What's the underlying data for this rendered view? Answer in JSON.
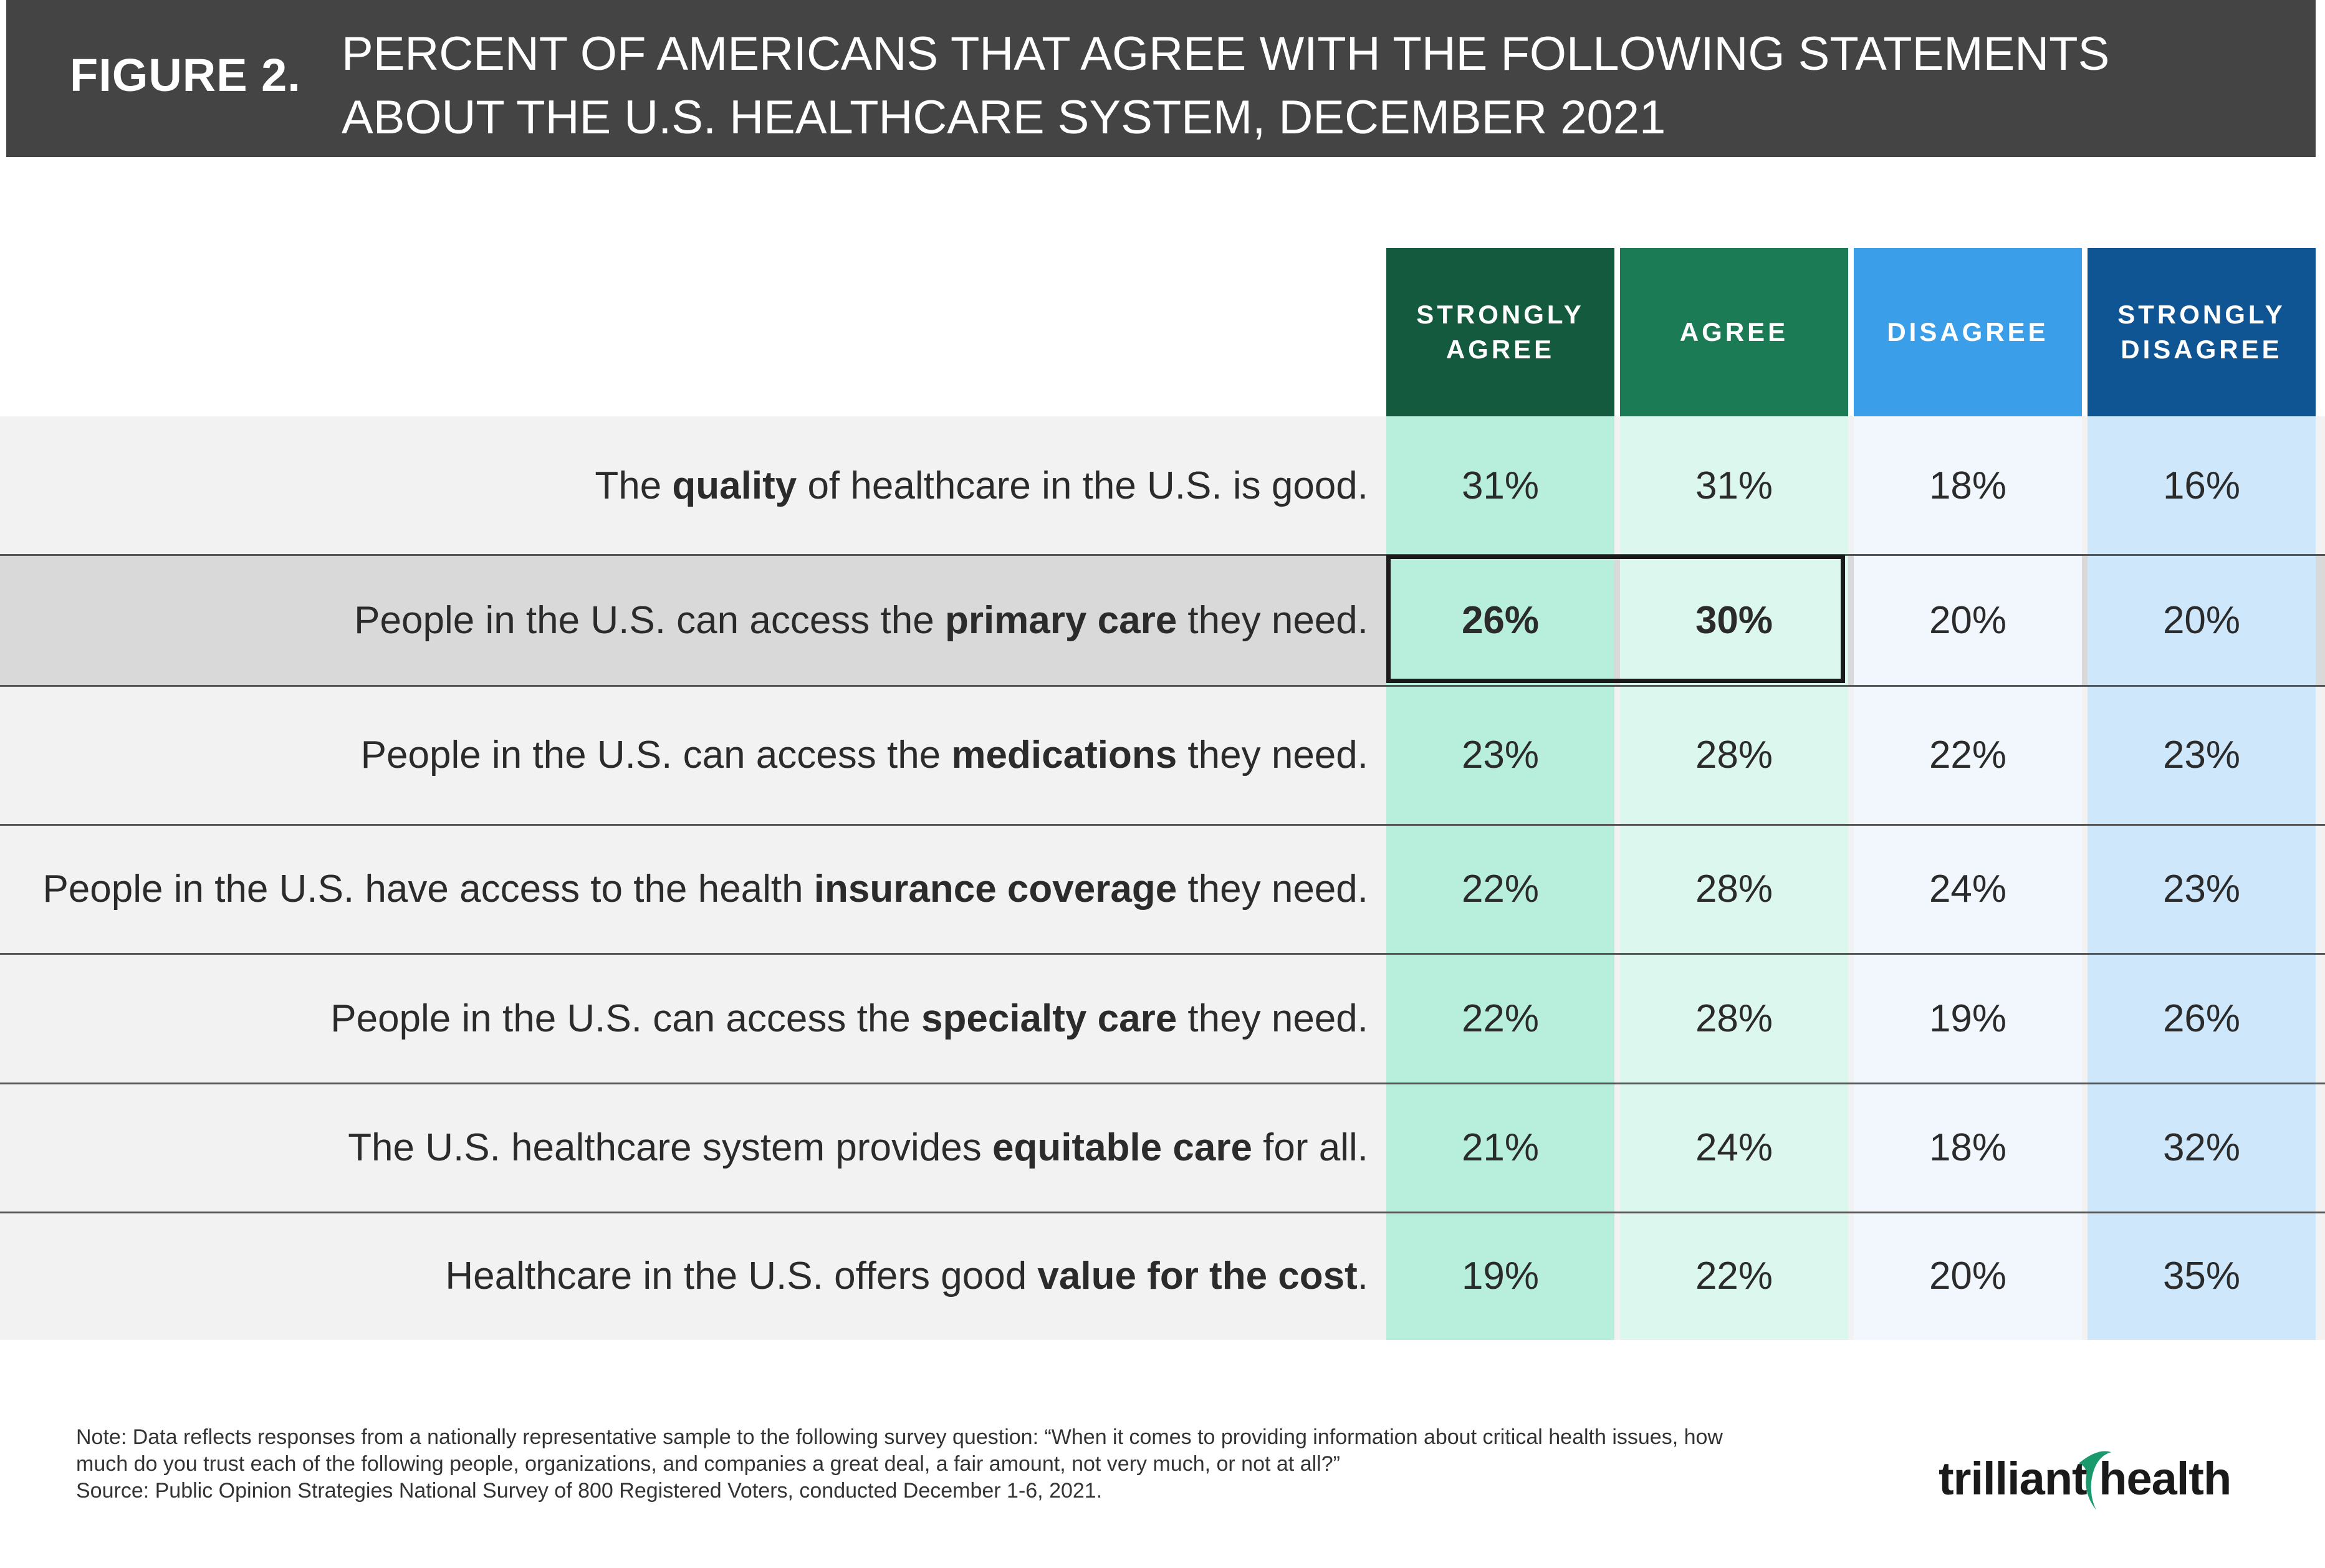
{
  "header": {
    "figure_label": "FIGURE 2.",
    "title_line1": "PERCENT OF AMERICANS THAT AGREE WITH THE FOLLOWING STATEMENTS",
    "title_line2": "ABOUT THE U.S. HEALTHCARE SYSTEM, DECEMBER 2021"
  },
  "colors": {
    "header_bg": "#444444",
    "strongly_agree_head": "#145a3e",
    "agree_head": "#1a7b55",
    "disagree_head": "#3a9fe8",
    "strongly_disagree_head": "#0f5593",
    "strongly_agree_cells": "#b7efdc",
    "agree_cells": "#dcf7ee",
    "disagree_cells": "#f1f7fd",
    "strongly_disagree_cells": "#cfe7fb",
    "row_bg": "#f2f2f2",
    "row_bg_highlight": "#d9d9d9"
  },
  "chart_data": {
    "type": "table",
    "columns": [
      {
        "label_line1": "STRONGLY",
        "label_line2": "AGREE"
      },
      {
        "label_line1": "AGREE",
        "label_line2": ""
      },
      {
        "label_line1": "DISAGREE",
        "label_line2": ""
      },
      {
        "label_line1": "STRONGLY",
        "label_line2": "DISAGREE"
      }
    ],
    "rows": [
      {
        "pre": "The ",
        "bold": "quality",
        "post": " of healthcare in the U.S. is good.",
        "values": [
          "31%",
          "31%",
          "18%",
          "16%"
        ]
      },
      {
        "pre": "People in the U.S. can access the ",
        "bold": "primary care",
        "post": " they need.",
        "values": [
          "26%",
          "30%",
          "20%",
          "20%"
        ],
        "highlighted": true
      },
      {
        "pre": "People in the U.S. can access the ",
        "bold": "medications",
        "post": " they need.",
        "values": [
          "23%",
          "28%",
          "22%",
          "23%"
        ]
      },
      {
        "pre": "People in the U.S. have access to the health ",
        "bold": "insurance coverage",
        "post": " they need.",
        "values": [
          "22%",
          "28%",
          "24%",
          "23%"
        ]
      },
      {
        "pre": "People in the U.S. can access the ",
        "bold": "specialty care",
        "post": " they need.",
        "values": [
          "22%",
          "28%",
          "19%",
          "26%"
        ]
      },
      {
        "pre": "The U.S. healthcare system provides ",
        "bold": "equitable care",
        "post": " for all.",
        "values": [
          "21%",
          "24%",
          "18%",
          "32%"
        ]
      },
      {
        "pre": "Healthcare in the U.S. offers good ",
        "bold": "value for the cost",
        "post": ".",
        "values": [
          "19%",
          "22%",
          "20%",
          "35%"
        ]
      }
    ]
  },
  "footer": {
    "note_line1": "Note: Data reflects responses from a nationally representative sample to the following survey question: “When it comes to providing information about critical health issues, how",
    "note_line2": "much do you trust each of the following people, organizations, and companies a great deal, a fair amount, not very much, or not at all?”",
    "source": "Source: Public Opinion Strategies National Survey of 800 Registered Voters, conducted December 1-6, 2021.",
    "logo_text": "trilliant health"
  }
}
